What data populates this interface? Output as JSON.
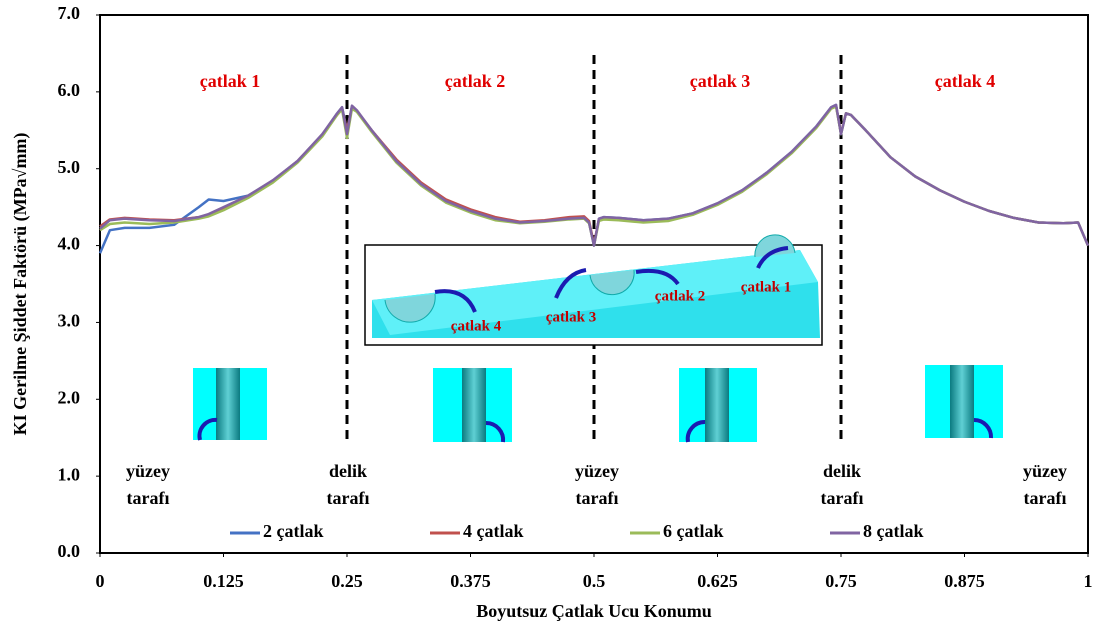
{
  "chart_data": {
    "type": "line",
    "xlabel": "Boyutsuz Çatlak Ucu Konumu",
    "ylabel": "KI Gerilme Şiddet Faktörü (MPa√mm)",
    "x": [
      0,
      0.01,
      0.025,
      0.05,
      0.075,
      0.1,
      0.11,
      0.125,
      0.15,
      0.175,
      0.2,
      0.225,
      0.24,
      0.245,
      0.25,
      0.255,
      0.26,
      0.275,
      0.3,
      0.325,
      0.35,
      0.375,
      0.4,
      0.425,
      0.45,
      0.475,
      0.49,
      0.495,
      0.5,
      0.505,
      0.51,
      0.525,
      0.55,
      0.575,
      0.6,
      0.625,
      0.65,
      0.675,
      0.7,
      0.725,
      0.74,
      0.745,
      0.75,
      0.755,
      0.76,
      0.775,
      0.8,
      0.825,
      0.85,
      0.875,
      0.9,
      0.925,
      0.95,
      0.975,
      0.99,
      1
    ],
    "series": [
      {
        "name": "2 çatlak",
        "color": "#4472c4",
        "values": [
          3.9,
          4.2,
          4.23,
          4.23,
          4.27,
          4.5,
          4.6,
          4.58,
          4.65,
          4.84,
          5.1,
          5.44,
          5.72,
          5.8,
          5.5,
          5.81,
          5.75,
          5.5,
          5.1,
          4.8,
          4.58,
          4.45,
          4.35,
          4.3,
          4.32,
          4.35,
          4.36,
          4.3,
          4.0,
          4.35,
          4.37,
          4.36,
          4.33,
          4.35,
          4.42,
          4.55,
          4.72,
          4.95,
          5.22,
          5.55,
          5.8,
          5.83,
          5.45,
          5.72,
          5.7,
          5.5,
          5.15,
          4.9,
          4.72,
          4.57,
          4.45,
          4.36,
          4.3,
          4.29,
          4.3,
          4.0
        ]
      },
      {
        "name": "4 çatlak",
        "color": "#c0504d",
        "values": [
          4.25,
          4.34,
          4.36,
          4.34,
          4.33,
          4.37,
          4.4,
          4.49,
          4.64,
          4.84,
          5.1,
          5.44,
          5.7,
          5.78,
          5.5,
          5.8,
          5.75,
          5.5,
          5.12,
          4.82,
          4.6,
          4.47,
          4.37,
          4.31,
          4.33,
          4.37,
          4.38,
          4.32,
          4.02,
          4.34,
          4.36,
          4.35,
          4.32,
          4.34,
          4.41,
          4.54,
          4.71,
          4.94,
          5.21,
          5.54,
          5.79,
          5.82,
          5.46,
          5.72,
          5.7,
          5.5,
          5.15,
          4.9,
          4.72,
          4.57,
          4.45,
          4.36,
          4.3,
          4.29,
          4.3,
          4.0
        ]
      },
      {
        "name": "6 çatlak",
        "color": "#9bbb59",
        "values": [
          4.2,
          4.28,
          4.3,
          4.28,
          4.3,
          4.35,
          4.38,
          4.46,
          4.62,
          4.82,
          5.08,
          5.42,
          5.7,
          5.77,
          5.4,
          5.78,
          5.74,
          5.48,
          5.08,
          4.78,
          4.56,
          4.43,
          4.33,
          4.29,
          4.31,
          4.34,
          4.35,
          4.29,
          4.0,
          4.32,
          4.34,
          4.33,
          4.3,
          4.32,
          4.4,
          4.53,
          4.7,
          4.93,
          5.2,
          5.53,
          5.78,
          5.81,
          5.45,
          5.72,
          5.7,
          5.5,
          5.15,
          4.9,
          4.72,
          4.57,
          4.45,
          4.36,
          4.3,
          4.29,
          4.3,
          4.0
        ]
      },
      {
        "name": "8 çatlak",
        "color": "#8064a2",
        "values": [
          4.22,
          4.33,
          4.35,
          4.33,
          4.32,
          4.37,
          4.41,
          4.5,
          4.65,
          4.85,
          5.1,
          5.45,
          5.72,
          5.8,
          5.45,
          5.82,
          5.76,
          5.5,
          5.1,
          4.8,
          4.58,
          4.45,
          4.35,
          4.3,
          4.32,
          4.35,
          4.36,
          4.3,
          4.0,
          4.35,
          4.37,
          4.36,
          4.33,
          4.35,
          4.42,
          4.55,
          4.72,
          4.95,
          5.22,
          5.55,
          5.8,
          5.83,
          5.45,
          5.72,
          5.7,
          5.5,
          5.15,
          4.9,
          4.72,
          4.57,
          4.45,
          4.36,
          4.3,
          4.29,
          4.3,
          4.0
        ]
      }
    ],
    "xlim": [
      0,
      1
    ],
    "xticks": [
      0,
      0.125,
      0.25,
      0.375,
      0.5,
      0.625,
      0.75,
      0.875,
      1
    ],
    "ylim": [
      0,
      7
    ],
    "yticks": [
      {
        "value": 0,
        "label": "0.0"
      },
      {
        "value": 1,
        "label": "1.0"
      },
      {
        "value": 2,
        "label": "2.0"
      },
      {
        "value": 3,
        "label": "3.0"
      },
      {
        "value": 4,
        "label": "4.0"
      },
      {
        "value": 5,
        "label": "5.0"
      },
      {
        "value": 6,
        "label": "6.0"
      },
      {
        "value": 7,
        "label": "7.0"
      }
    ],
    "grid": false,
    "legend": "lower center",
    "annotations": {
      "sections": [
        "çatlak 1",
        "çatlak 2",
        "çatlak 3",
        "çatlak 4"
      ],
      "sides": [
        {
          "lines": [
            "yüzey",
            "tarafı"
          ]
        },
        {
          "lines": [
            "delik",
            "tarafı"
          ]
        },
        {
          "lines": [
            "yüzey",
            "tarafı"
          ]
        },
        {
          "lines": [
            "delik",
            "tarafı"
          ]
        },
        {
          "lines": [
            "yüzey",
            "tarafı"
          ]
        }
      ],
      "inset_labels": [
        "çatlak 4",
        "çatlak 3",
        "çatlak 2",
        "çatlak 1"
      ]
    }
  }
}
